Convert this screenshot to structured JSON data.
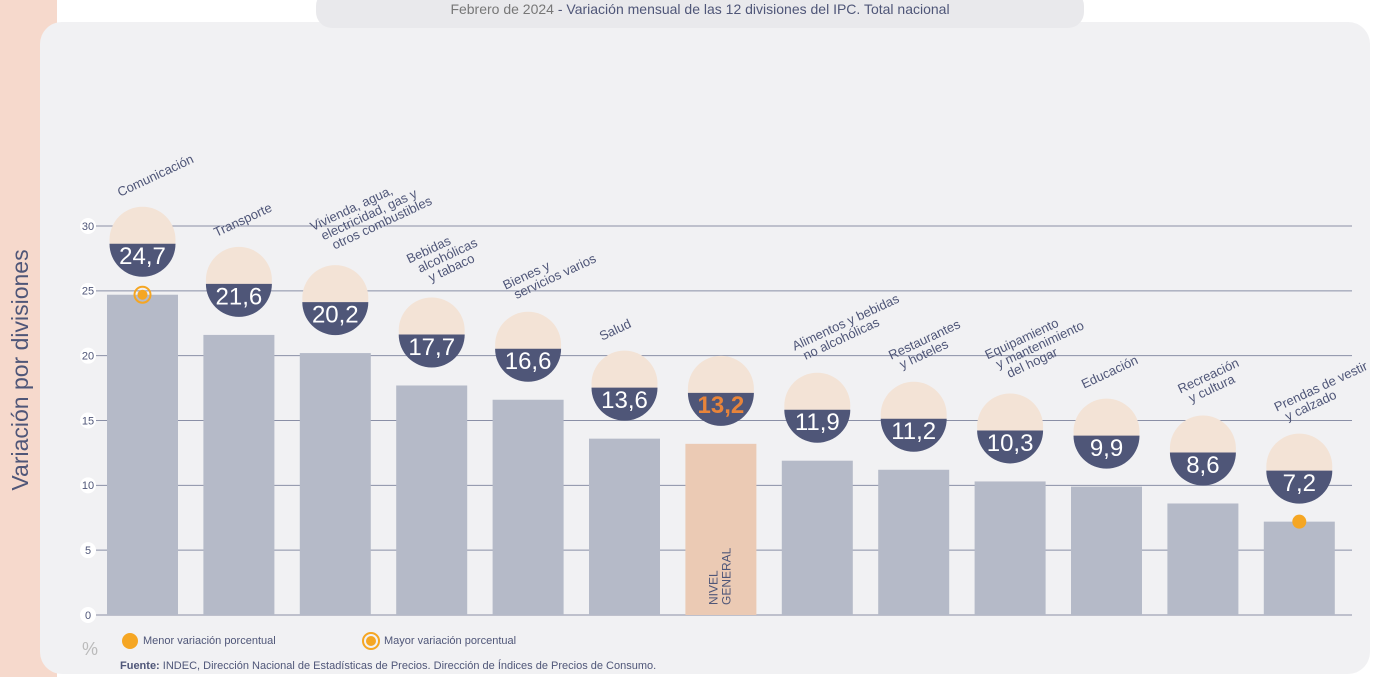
{
  "chart_data": {
    "type": "bar",
    "title_date": "Febrero de 2024",
    "title": " - Variación mensual de las 12 divisiones del IPC. Total nacional",
    "y_label": "Variación por divisiones",
    "unit": "%",
    "categories": [
      [
        "Comunicación"
      ],
      [
        "Transporte"
      ],
      [
        "Vivienda, agua,",
        "electricidad, gas y",
        "otros combustibles"
      ],
      [
        "Bebidas",
        "alcohólicas",
        "y tabaco"
      ],
      [
        "Bienes y",
        "servicios varios"
      ],
      [
        "Salud"
      ],
      [
        "NIVEL",
        "GENERAL"
      ],
      [
        "Alimentos y bebidas",
        "no alcohólicas"
      ],
      [
        "Restaurantes",
        "y hoteles"
      ],
      [
        "Equipamiento",
        "y mantenimiento",
        "del hogar"
      ],
      [
        "Educación"
      ],
      [
        "Recreación",
        "y cultura"
      ],
      [
        "Prendas de vestir",
        "y calzado"
      ]
    ],
    "values": [
      24.7,
      21.6,
      20.2,
      17.7,
      16.6,
      13.6,
      13.2,
      11.9,
      11.2,
      10.3,
      9.9,
      8.6,
      7.2
    ],
    "value_labels": [
      "24,7",
      "21,6",
      "20,2",
      "17,7",
      "16,6",
      "13,6",
      "13,2",
      "11,9",
      "11,2",
      "10,3",
      "9,9",
      "8,6",
      "7,2"
    ],
    "color": "#b5bac8",
    "label_circle_color": "#4f5678",
    "highlight": {
      "index": 6,
      "bar_color": "#ebcab4",
      "label_color": "#e8843a"
    },
    "marker_color": "#f5a623",
    "legend": [
      "Menor variación porcentual",
      "Mayor variación porcentual"
    ],
    "ylim": [
      0,
      30
    ],
    "yticks": [
      0,
      5,
      10,
      15,
      20,
      25,
      30
    ],
    "grid": true,
    "source_label": "Fuente:",
    "source": " INDEC, Dirección Nacional de Estadísticas de Precios. Dirección de Índices de Precios de Consumo."
  }
}
